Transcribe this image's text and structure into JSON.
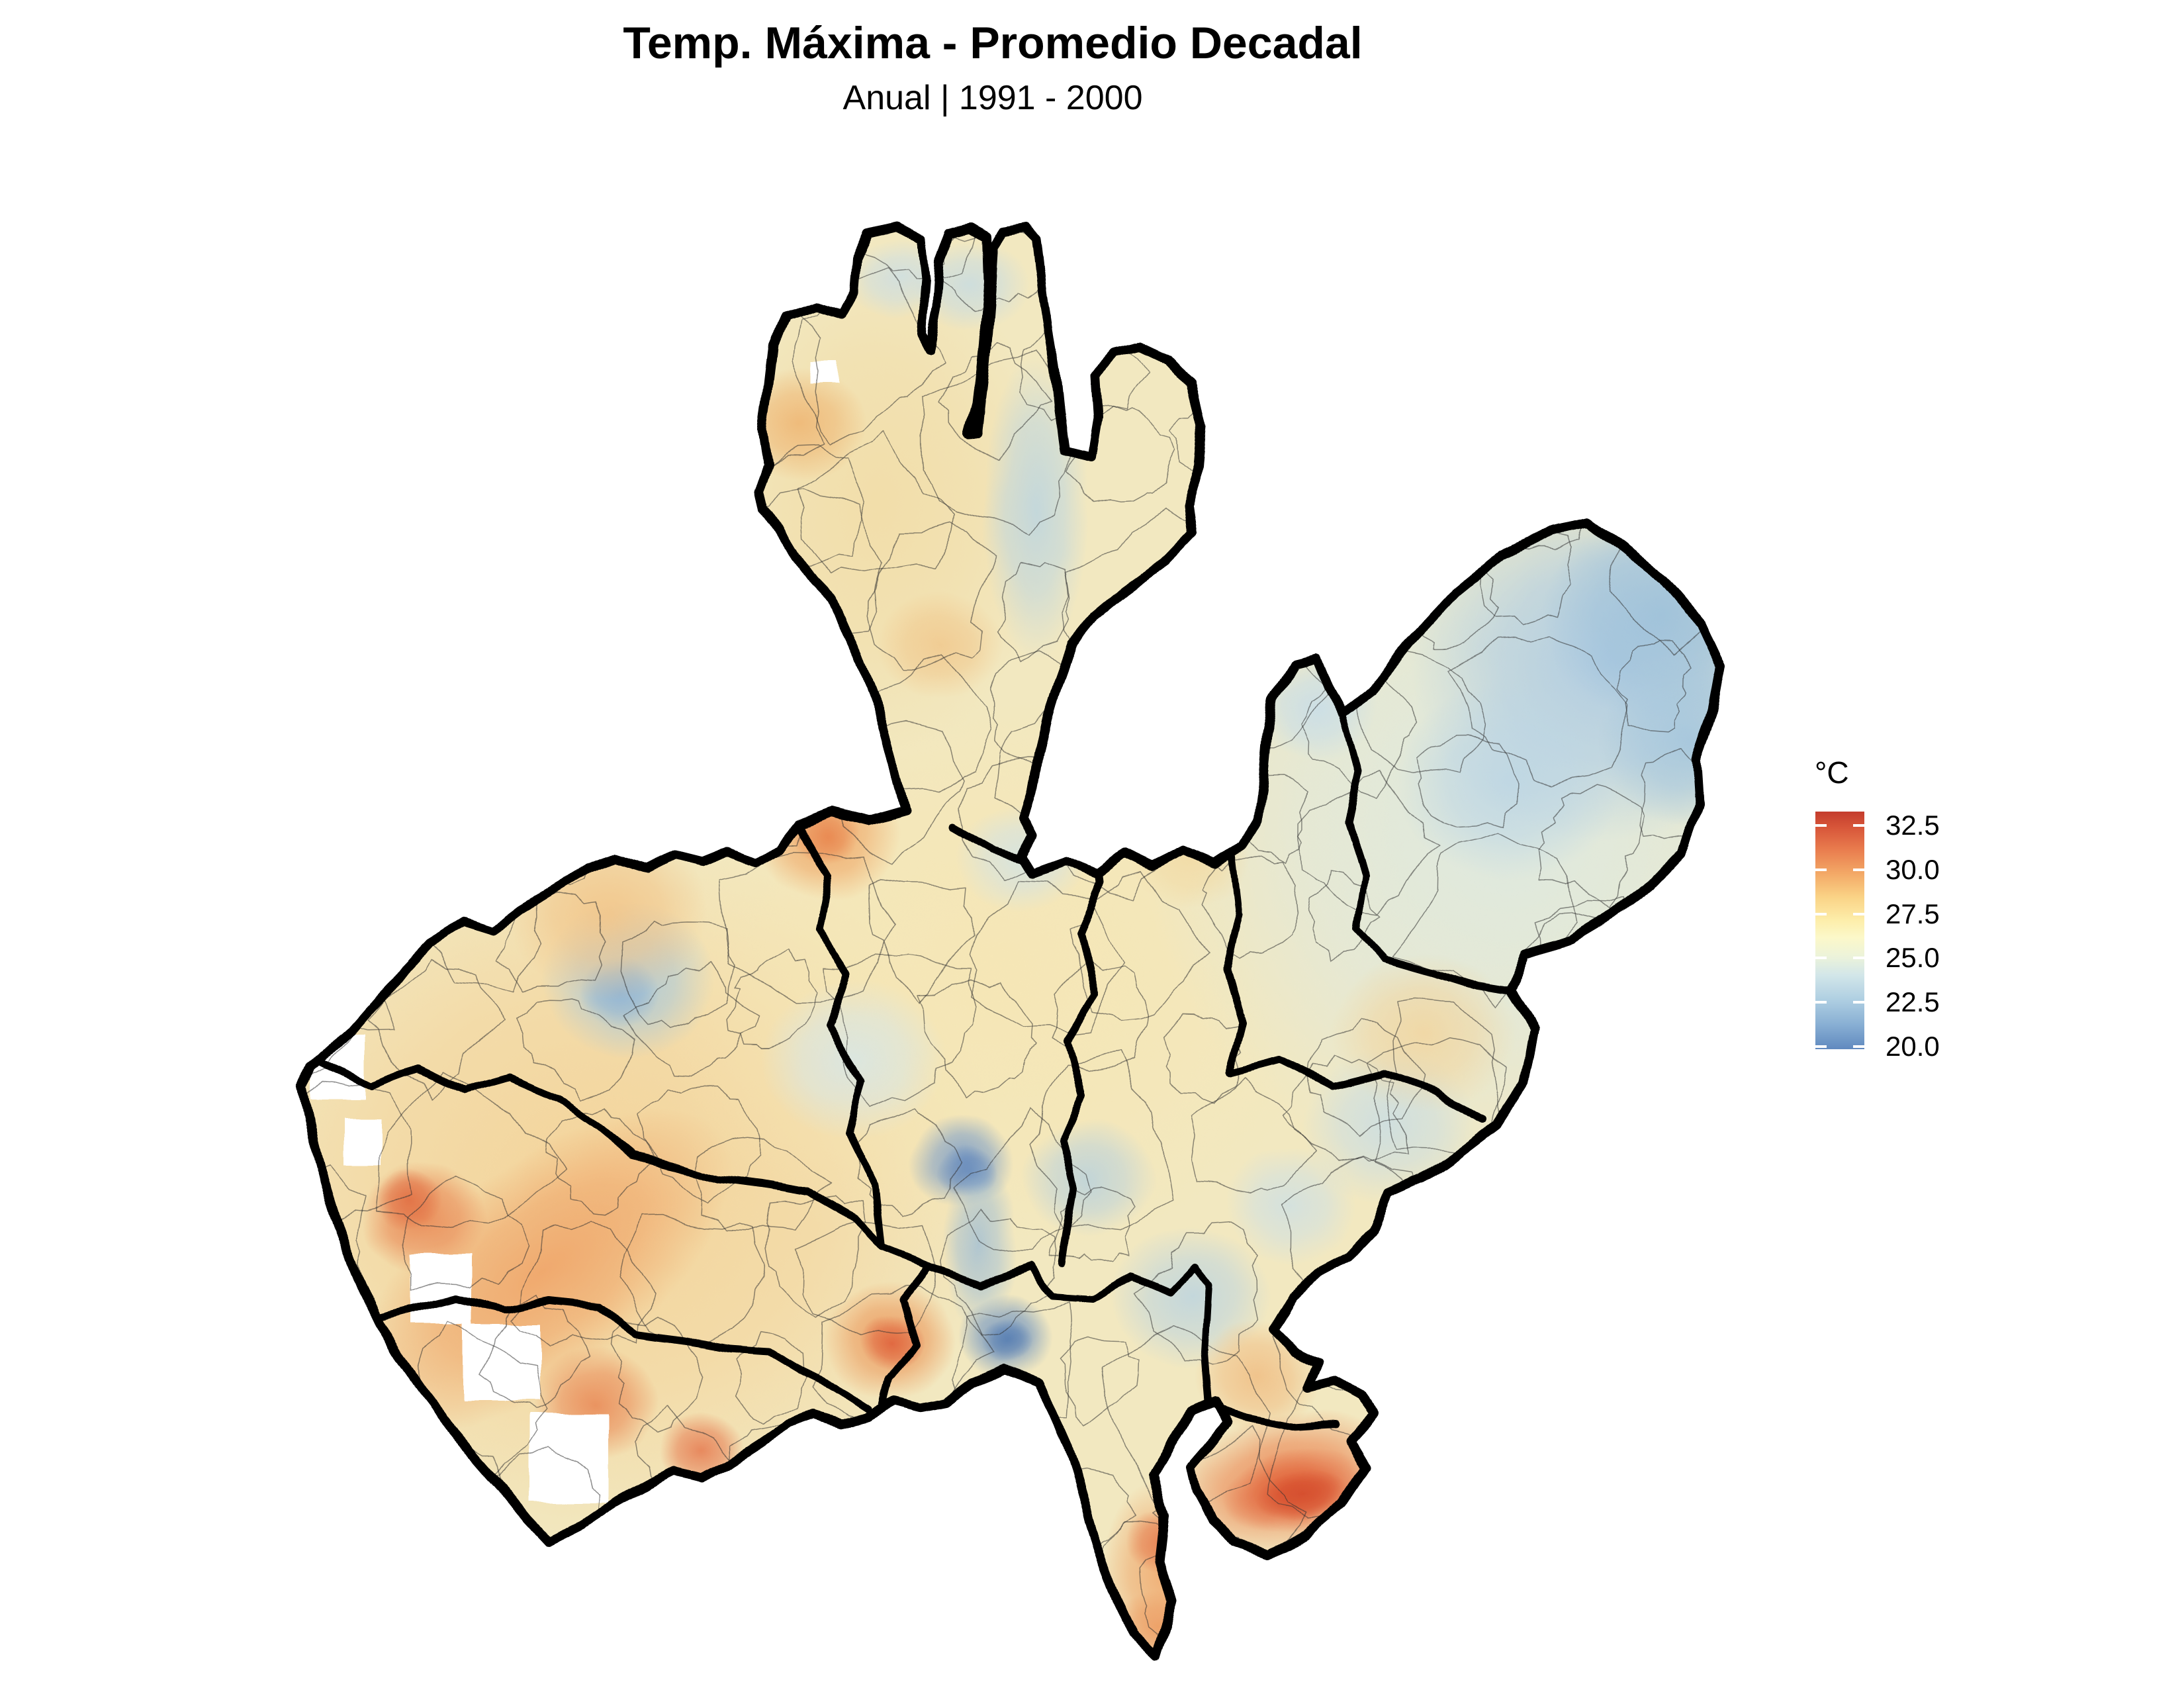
{
  "header": {
    "title": "Temp. Máxima - Promedio Decadal",
    "subtitle": "Anual | 1991 - 2000"
  },
  "legend": {
    "title": "°C",
    "ticks": [
      "32.5",
      "30.0",
      "27.5",
      "25.0",
      "22.5",
      "20.0"
    ],
    "tick_values": [
      32.5,
      30.0,
      27.5,
      25.0,
      22.5,
      20.0
    ],
    "bar_colors_top_to_bottom": [
      "#c43c2c",
      "#e97c4e",
      "#f3a866",
      "#fad386",
      "#fdeeab",
      "#ecf3da",
      "#d2e6e9",
      "#afcfe2",
      "#87aed3",
      "#6089bf"
    ],
    "orientation": "vertical",
    "position": "right"
  },
  "map": {
    "region_shown": "Jalisco, Mexico",
    "boundary_levels": [
      "state (thick black)",
      "regions (thick black)",
      "municipalities (thin gray)"
    ],
    "background": "#ffffff"
  },
  "chart_data": {
    "type": "heatmap",
    "title": "Temp. Máxima - Promedio Decadal",
    "subtitle": "Anual | 1991 - 2000",
    "variable": "maximum temperature, decadal annual average",
    "units": "°C",
    "legend_title": "°C",
    "legend_ticks": [
      32.5,
      30.0,
      27.5,
      25.0,
      22.5,
      20.0
    ],
    "scale_range": [
      20.0,
      33.3
    ],
    "palette": "red-yellow-blue diverging (red = hot, blue = cold)",
    "geography": "State of Jalisco (Mexico) with municipal and regional boundaries",
    "legend_position": "right",
    "features": [
      {
        "area": "northeast highlands lobe (Altos Norte)",
        "approx_temp_c": 23.0
      },
      {
        "area": "northern canyons arm",
        "approx_temp_c": 26.5
      },
      {
        "area": "north arm cool valley streak",
        "approx_temp_c": 24.0
      },
      {
        "area": "central valleys (Valles / Centro)",
        "approx_temp_c": 27.5
      },
      {
        "area": "orange spot north of Valles region",
        "approx_temp_c": 30.0
      },
      {
        "area": "west-central sierra blue patch",
        "approx_temp_c": 23.0
      },
      {
        "area": "southwest coastal belt (Costa)",
        "approx_temp_c": 31.0
      },
      {
        "area": "coastal hot cores",
        "approx_temp_c": 31.5
      },
      {
        "area": "Sierra de Amula hotspot",
        "approx_temp_c": 31.0
      },
      {
        "area": "south-central sierra cold spots (deep blue)",
        "approx_temp_c": 21.0
      },
      {
        "area": "southeast lowlands hotspot (deep red-orange)",
        "approx_temp_c": 32.5
      },
      {
        "area": "southern peninsula warm band",
        "approx_temp_c": 30.0
      },
      {
        "area": "eastern Ciénega pale blue flats",
        "approx_temp_c": 24.5
      }
    ]
  }
}
